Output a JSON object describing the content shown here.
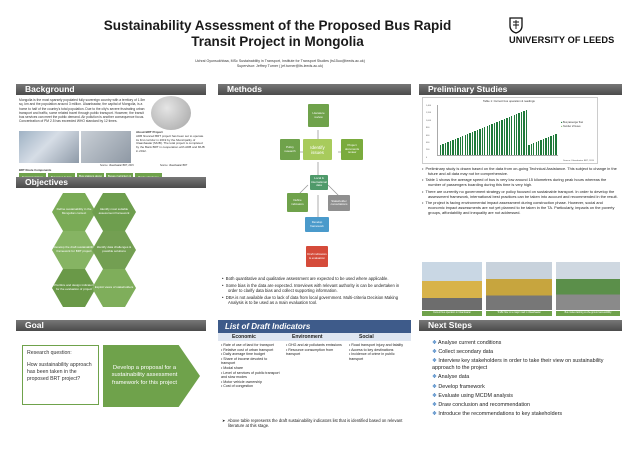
{
  "header": {
    "title_line1": "Sustainability Assessment of the Proposed Bus Rapid",
    "title_line2": "Transit Project in Mongolia",
    "authors_line1": "Uchral Oyunsukhbaa, MSc Sustainability in Transport, Institute for Transport Studies (ts15uo@leeds.ac.uk)",
    "authors_line2": "Supervisor: Jeffrey Turner ( jef.turner@its.leeds.ac.uk)",
    "logo_text": "UNIVERSITY OF LEEDS"
  },
  "sections": {
    "background": "Background",
    "methods": "Methods",
    "preliminary": "Preliminary Studies",
    "objectives": "Objectives",
    "goal": "Goal",
    "draft": "List of Draft Indicators",
    "next": "Next Steps"
  },
  "background": {
    "text": "Mongolia is the most sparsely populated fully sovereign country with a territory of 1.5m sq. km and the population around 3 million. Ulaanbaatar, the capital of Mongolia, is a home to half of the country's total population. Due to the city's severe frustrating urban transport and traffic, some related travel through public transport. However, the transit bus services can meet the public demand. Air pollution is another consequence focus. Concentration of PM 2.5 has exceeded WHO standard by 12 times.",
    "brt_title": "About BRT Project",
    "brt_text": "ADB financed BRT project has been set to operate its first corridor in 2019 by the Municipality of Ulaanbaatar (MUB). The total project is completed by the Bank BRT in cooperation with ADB and MUB in 2012.",
    "photo_caption1": "Source: Ulaanbaatar BRT, 2015",
    "photo_caption2": "Source: Ulaanbaatar BRT",
    "components_title": "BRT Route Components",
    "components": [
      "Terminal stations",
      "Bus lanes & lane",
      "Bus stations along route",
      "Buses (vehicles) & intelligent system",
      "Route structures"
    ]
  },
  "objectives": {
    "hexes": [
      "Define sustainability in the Mongolian context",
      "Identify most suitable assessment framework",
      "Develop the draft sustainability framework for BRT project",
      "Identify data challenges & possible solutions",
      "Prioritize and design indicators for the evaluation of project",
      "Exploit views of stakeholders"
    ]
  },
  "methods": {
    "center": "Identify issues",
    "nodes": [
      "Literature review",
      "Policy research",
      "Project documents review",
      "Local & international data",
      "Define indicators",
      "Stakeholder consultations",
      "Develop framework",
      "Draft indicators & evaluation"
    ],
    "bullets": [
      "Both quantitative and qualitative assessment are expected to be used where applicable.",
      "Some bias in the data are expected. Interviews with relevant authority is can be undertaken in order to clarify data bias and collect supporting information.",
      "DBA is not available due to lack of data from local government. Multi-criteria Decision Making Analysis is to be used as a main evaluation tool."
    ]
  },
  "prelim": {
    "chart_title": "Table 1: Current bus operation & readings",
    "y_ticks": [
      "1,400",
      "1,200",
      "1,000",
      "800",
      "600",
      "400",
      "200",
      "0"
    ],
    "legend": [
      "Bus passenger flow",
      "Number of buses"
    ],
    "source": "Source: Ulaanbaatar BRT, 2015",
    "bullets": [
      "Preliminary study is drawn based on the data from on-going Technical Assistance. This subject to change in the future and all data may not be comprehensive.",
      "Table 1 shows the average speed of bus is very low around 15 kilometres during peak hours whereas the number of passengers boarding during this time is very high.",
      "There are currently no government strategy or policy focused on sustainable transport. In order to develop the assessment framework, international best practices can be taken into account and recommended in the result.",
      "The project is facing environmental impact assessment during construction phase. However, social and economic impact assessments are not yet planned to be taken in the TA. Particularly, impacts on the poverty groups, affordability and inequality are not addressed."
    ],
    "photo_captions": [
      "Current bus operation in Ulaanbaatar",
      "Traffic flow on a major road in Ulaanbaatar",
      "Bus routes lacking on-the-ground accessibility"
    ]
  },
  "goal": {
    "question_label": "Research question:",
    "question": "How sustainability approach has been taken in the proposed BRT project?",
    "arrow_text": "Develop a proposal for a sustainability assessment framework for this project"
  },
  "draft": {
    "headers": [
      "Economic",
      "Environment",
      "Social"
    ],
    "economic": [
      "Rate of use of land for transport",
      "Relative cost of urban transport",
      "Daily average time budget",
      "Share of income devoted to transport",
      "Modal share",
      "Level of services of public transport and slow modes",
      "Motor vehicle ownership",
      "Cost of congestion"
    ],
    "environment": [
      "GHG and air pollutants emissions",
      "Resource consumption from transport"
    ],
    "social": [
      "Road transport injury and fatality",
      "Access to key destinations",
      "Incidence of crime in public transport"
    ],
    "footnote": "Above table represents the draft sustainability indicators list that is identified based on relevant literature at this stage."
  },
  "next_steps": [
    "Analyse current conditions",
    "Collect secondary data",
    "Interview key stakeholders in order to take their view on sustainability approach to the project",
    "Analyse data",
    "Develop framework",
    "Evaluate using MCDM analysis",
    "Draw conclusion and recommendation",
    "Introduce the recommendations to key stakeholders"
  ],
  "colors": {
    "green_box": "#6fa24b",
    "header_gray": "#555555",
    "table_blue": "#3e5b8a",
    "chart_bar": "#1f7a3a"
  }
}
